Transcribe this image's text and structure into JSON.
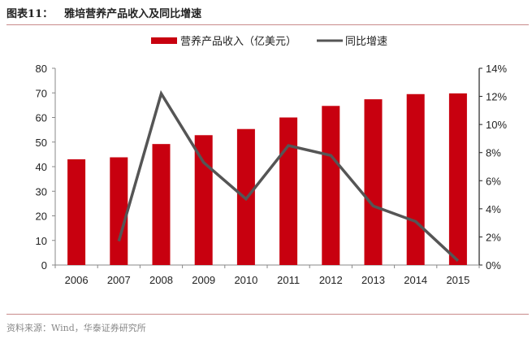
{
  "header": {
    "figure_label": "图表11：",
    "title": "雅培营养产品收入及同比增速"
  },
  "footer": {
    "source": "资料来源：Wind，华泰证券研究所"
  },
  "colors": {
    "bar": "#c8000f",
    "line": "#555555",
    "rule": "#c98b8b"
  },
  "chart_data": {
    "type": "bar+line",
    "title": "雅培营养产品收入及同比增速",
    "categories": [
      "2006",
      "2007",
      "2008",
      "2009",
      "2010",
      "2011",
      "2012",
      "2013",
      "2014",
      "2015"
    ],
    "series": [
      {
        "name": "营养产品收入（亿美元）",
        "type": "bar",
        "axis": "left",
        "values": [
          43.0,
          43.8,
          49.2,
          52.8,
          55.3,
          60.0,
          64.7,
          67.4,
          69.5,
          69.8
        ]
      },
      {
        "name": "同比增速",
        "type": "line",
        "axis": "right",
        "values": [
          null,
          1.7,
          12.2,
          7.3,
          4.7,
          8.5,
          7.8,
          4.2,
          3.1,
          0.3
        ]
      }
    ],
    "y_left": {
      "range": [
        0,
        80
      ],
      "ticks": [
        "0",
        "10",
        "20",
        "30",
        "40",
        "50",
        "60",
        "70",
        "80"
      ]
    },
    "y_right": {
      "range": [
        0,
        14
      ],
      "ticks": [
        "0%",
        "2%",
        "4%",
        "6%",
        "8%",
        "10%",
        "12%",
        "14%"
      ]
    },
    "legend_position": "top",
    "grid": false
  }
}
